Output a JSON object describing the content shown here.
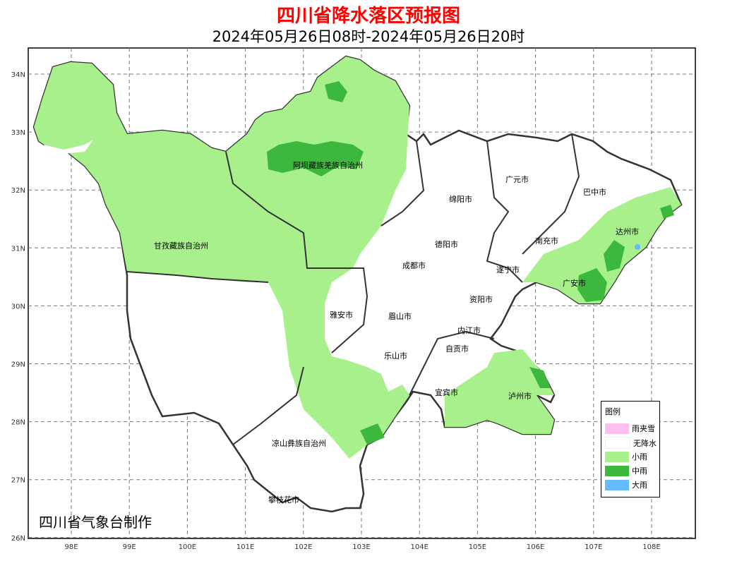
{
  "title": "四川省降水落区预报图",
  "subtitle": "2024年05月26日08时-2024年05月26日20时",
  "lat_ticks": [
    "34N",
    "33N",
    "32N",
    "31N",
    "30N",
    "29N",
    "28N",
    "27N",
    "26N"
  ],
  "lon_ticks": [
    "98E",
    "99E",
    "100E",
    "101E",
    "102E",
    "103E",
    "104E",
    "105E",
    "106E",
    "107E",
    "108E"
  ],
  "cities": [
    "阿坝藏族羌族自治州",
    "甘孜藏族自治州",
    "绵阳市",
    "广元市",
    "巴中市",
    "达州市",
    "南充市",
    "德阳市",
    "成都市",
    "遂宁市",
    "广安市",
    "雅安市",
    "眉山市",
    "资阳市",
    "乐山市",
    "内江市",
    "自贡市",
    "宜宾市",
    "泸州市",
    "凉山彝族自治州",
    "攀枝花市"
  ],
  "legend": {
    "title": "图例",
    "items": [
      {
        "label": "雨夹雪",
        "color": "#ffc0ee"
      },
      {
        "label": "无降水",
        "color": "#ffffff"
      },
      {
        "label": "小雨",
        "color": "#a8f08c"
      },
      {
        "label": "中雨",
        "color": "#3cb93c"
      },
      {
        "label": "大雨",
        "color": "#64b9ff"
      }
    ]
  },
  "credit": "四川省气象台制作"
}
